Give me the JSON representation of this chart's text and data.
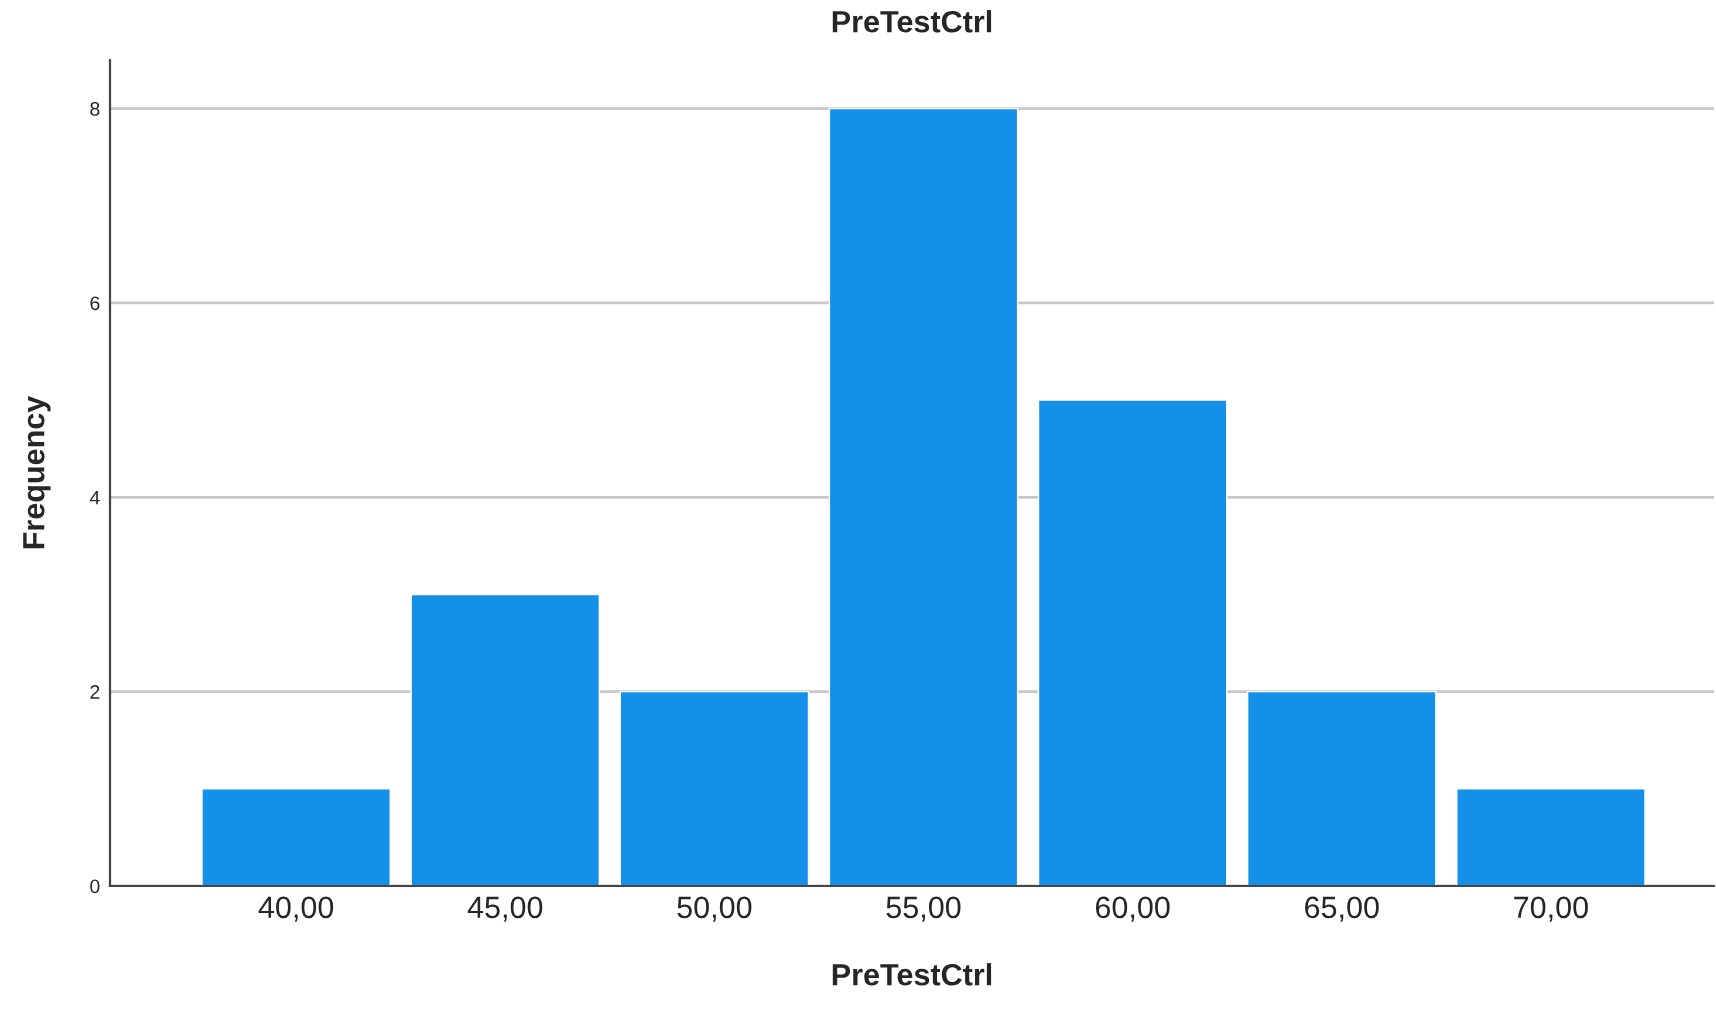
{
  "chart_data": {
    "type": "bar",
    "title": "PreTestCtrl",
    "xlabel": "PreTestCtrl",
    "ylabel": "Frequency",
    "categories": [
      "40,00",
      "45,00",
      "50,00",
      "55,00",
      "60,00",
      "65,00",
      "70,00"
    ],
    "values": [
      1,
      3,
      2,
      8,
      5,
      2,
      1
    ],
    "color": "#1490e8",
    "ylim": [
      0,
      8.5
    ],
    "yticks": [
      0,
      2,
      4,
      6,
      8
    ],
    "grid": "y"
  }
}
